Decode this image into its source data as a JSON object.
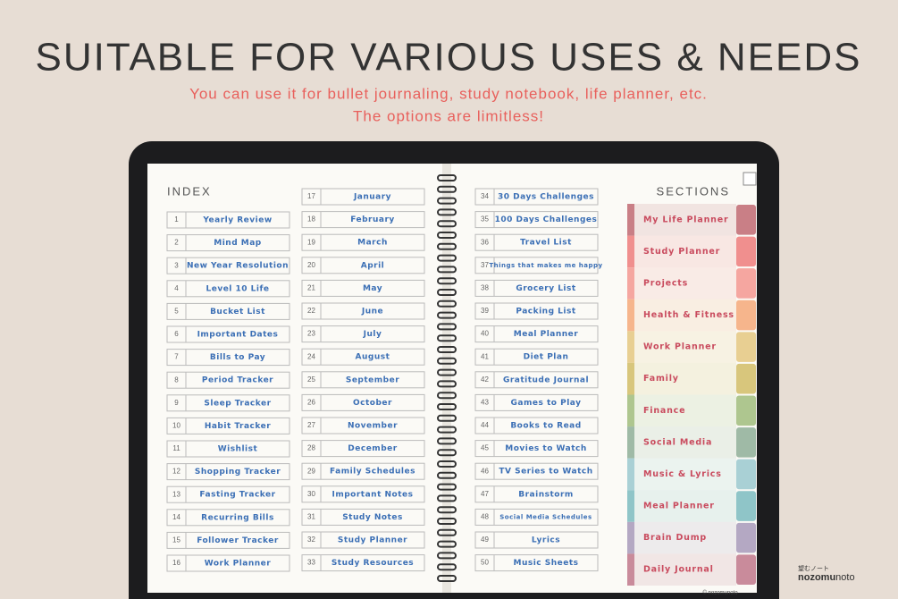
{
  "header": {
    "title": "SUITABLE FOR VARIOUS USES & NEEDS",
    "subtitle": [
      "You can use it for bullet journaling, study notebook, life planner, etc.",
      "The options are limitless!"
    ]
  },
  "planner": {
    "index_title": "INDEX",
    "sections_title": "SECTIONS",
    "footer": "© nozomunoto",
    "index": [
      {
        "number": 1,
        "label": "Yearly Review"
      },
      {
        "number": 2,
        "label": "Mind Map"
      },
      {
        "number": 3,
        "label": "New Year Resolution"
      },
      {
        "number": 4,
        "label": "Level 10 Life"
      },
      {
        "number": 5,
        "label": "Bucket List"
      },
      {
        "number": 6,
        "label": "Important Dates"
      },
      {
        "number": 7,
        "label": "Bills to Pay"
      },
      {
        "number": 8,
        "label": "Period Tracker"
      },
      {
        "number": 9,
        "label": "Sleep Tracker"
      },
      {
        "number": 10,
        "label": "Habit Tracker"
      },
      {
        "number": 11,
        "label": "Wishlist"
      },
      {
        "number": 12,
        "label": "Shopping Tracker"
      },
      {
        "number": 13,
        "label": "Fasting Tracker"
      },
      {
        "number": 14,
        "label": "Recurring Bills"
      },
      {
        "number": 15,
        "label": "Follower Tracker"
      },
      {
        "number": 16,
        "label": "Work Planner"
      },
      {
        "number": 17,
        "label": "January"
      },
      {
        "number": 18,
        "label": "February"
      },
      {
        "number": 19,
        "label": "March"
      },
      {
        "number": 20,
        "label": "April"
      },
      {
        "number": 21,
        "label": "May"
      },
      {
        "number": 22,
        "label": "June"
      },
      {
        "number": 23,
        "label": "July"
      },
      {
        "number": 24,
        "label": "August"
      },
      {
        "number": 25,
        "label": "September"
      },
      {
        "number": 26,
        "label": "October"
      },
      {
        "number": 27,
        "label": "November"
      },
      {
        "number": 28,
        "label": "December"
      },
      {
        "number": 29,
        "label": "Family Schedules"
      },
      {
        "number": 30,
        "label": "Important Notes"
      },
      {
        "number": 31,
        "label": "Study Notes"
      },
      {
        "number": 32,
        "label": "Study Planner"
      },
      {
        "number": 33,
        "label": "Study Resources"
      },
      {
        "number": 34,
        "label": "30 Days Challenges"
      },
      {
        "number": 35,
        "label": "100 Days Challenges"
      },
      {
        "number": 36,
        "label": "Travel List"
      },
      {
        "number": 37,
        "label": "Things that makes me happy"
      },
      {
        "number": 38,
        "label": "Grocery List"
      },
      {
        "number": 39,
        "label": "Packing List"
      },
      {
        "number": 40,
        "label": "Meal Planner"
      },
      {
        "number": 41,
        "label": "Diet Plan"
      },
      {
        "number": 42,
        "label": "Gratitude Journal"
      },
      {
        "number": 43,
        "label": "Games to Play"
      },
      {
        "number": 44,
        "label": "Books to Read"
      },
      {
        "number": 45,
        "label": "Movies to Watch"
      },
      {
        "number": 46,
        "label": "TV Series to Watch"
      },
      {
        "number": 47,
        "label": "Brainstorm"
      },
      {
        "number": 48,
        "label": "Social Media Schedules"
      },
      {
        "number": 49,
        "label": "Lyrics"
      },
      {
        "number": 50,
        "label": "Music Sheets"
      }
    ],
    "sections": [
      {
        "label": "My Life Planner",
        "color": "#c97f86"
      },
      {
        "label": "Study Planner",
        "color": "#f08f8e"
      },
      {
        "label": "Projects",
        "color": "#f5a6a0"
      },
      {
        "label": "Health & Fitness",
        "color": "#f6b58c"
      },
      {
        "label": "Work Planner",
        "color": "#e8cf92"
      },
      {
        "label": "Family",
        "color": "#d8c67c"
      },
      {
        "label": "Finance",
        "color": "#aec68f"
      },
      {
        "label": "Social Media",
        "color": "#9fbaa6"
      },
      {
        "label": "Music & Lyrics",
        "color": "#a9d0d5"
      },
      {
        "label": "Meal Planner",
        "color": "#8fc5c8"
      },
      {
        "label": "Brain Dump",
        "color": "#b4a8c3"
      },
      {
        "label": "Daily Journal",
        "color": "#c98b9b"
      }
    ]
  },
  "brand": {
    "kana": "望むノート",
    "name_bold": "nozomu",
    "name_light": "noto"
  }
}
